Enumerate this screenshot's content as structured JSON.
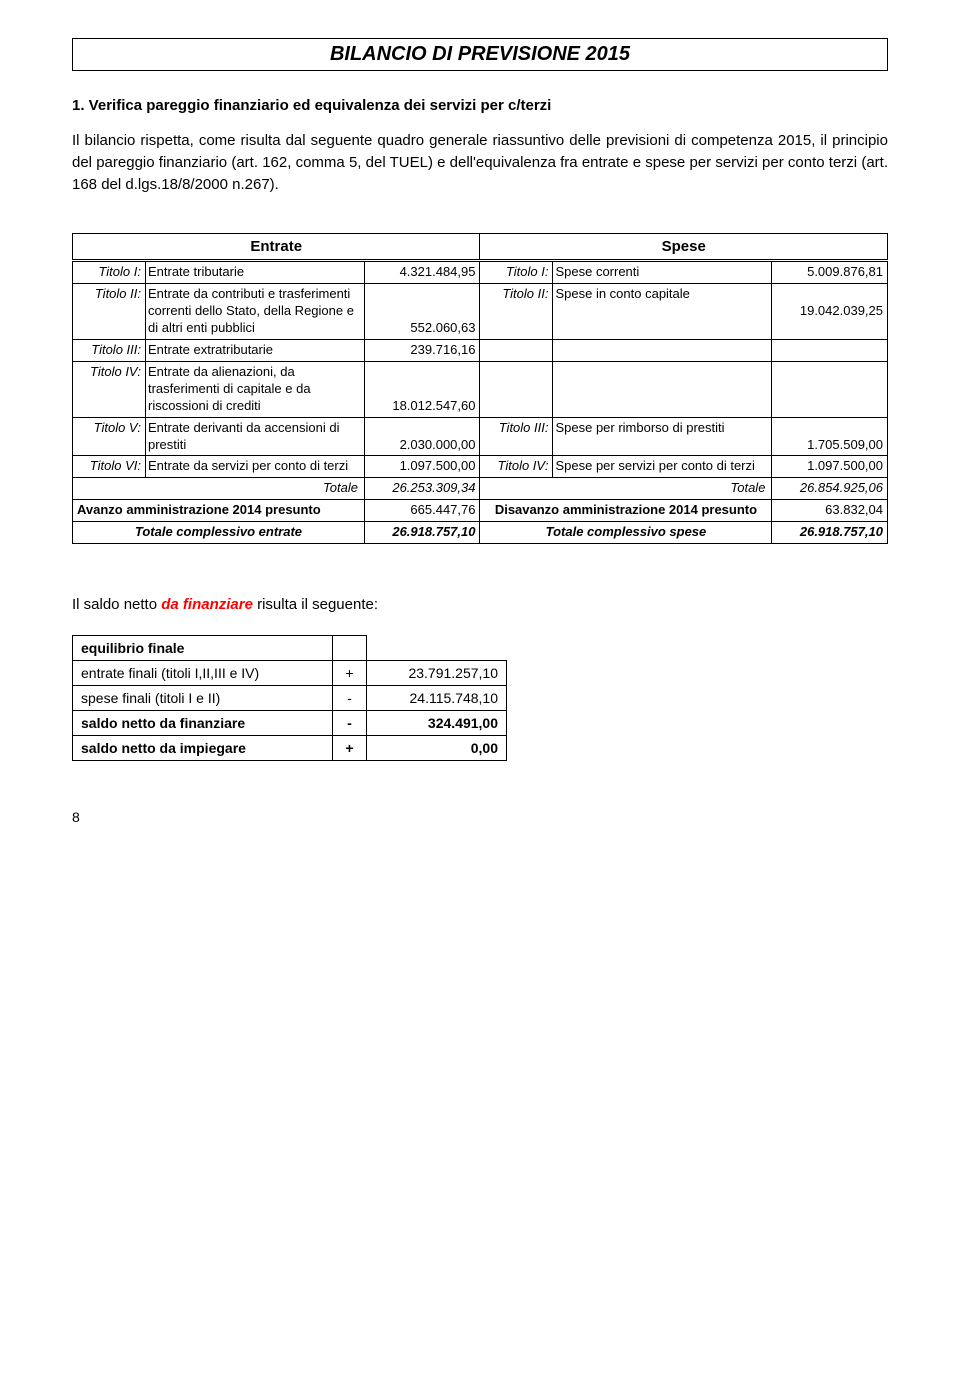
{
  "doc_title": "BILANCIO DI PREVISIONE 2015",
  "section_heading": "1. Verifica pareggio finanziario ed equivalenza dei servizi per c/terzi",
  "body_text": "Il bilancio rispetta, come risulta dal seguente quadro generale riassuntivo delle previsioni di competenza 2015, il principio del pareggio finanziario (art. 162, comma 5, del TUEL) e dell'equivalenza fra entrate e spese per servizi per conto terzi (art. 168 del d.lgs.18/8/2000 n.267).",
  "budget": {
    "entrate_head": "Entrate",
    "spese_head": "Spese",
    "rows": {
      "e1": {
        "titolo": "Titolo I:",
        "desc": "Entrate tributarie",
        "val": "4.321.484,95"
      },
      "s1": {
        "titolo": "Titolo I:",
        "desc": "Spese correnti",
        "val": "5.009.876,81"
      },
      "e2": {
        "titolo": "Titolo II:",
        "desc": "Entrate da contributi e trasferimenti correnti dello Stato, della Regione e di altri enti pubblici",
        "val": "552.060,63"
      },
      "s2": {
        "titolo": "Titolo II:",
        "desc": "Spese in conto capitale",
        "val": "19.042.039,25"
      },
      "e3": {
        "titolo": "Titolo III:",
        "desc": "Entrate extratributarie",
        "val": "239.716,16"
      },
      "e4": {
        "titolo": "Titolo IV:",
        "desc": "Entrate da alienazioni, da trasferimenti di capitale e da riscossioni di crediti",
        "val": "18.012.547,60"
      },
      "e5": {
        "titolo": "Titolo V:",
        "desc": "Entrate derivanti da accensioni di prestiti",
        "val": "2.030.000,00"
      },
      "s3": {
        "titolo": "Titolo III:",
        "desc": "Spese per rimborso di prestiti",
        "val": "1.705.509,00"
      },
      "e6": {
        "titolo": "Titolo VI:",
        "desc": "Entrate da servizi per conto di terzi",
        "val": "1.097.500,00"
      },
      "s4": {
        "titolo": "Titolo IV:",
        "desc": "Spese per servizi per conto di terzi",
        "val": "1.097.500,00"
      },
      "tot_e": {
        "label": "Totale",
        "val": "26.253.309,34"
      },
      "tot_s": {
        "label": "Totale",
        "val": "26.854.925,06"
      },
      "avanzo": {
        "label": "Avanzo amministrazione 2014 presunto",
        "val": "665.447,76"
      },
      "disavanzo": {
        "label": "Disavanzo  amministrazione 2014 presunto",
        "val": "63.832,04"
      },
      "comp_e": {
        "label": "Totale complessivo entrate",
        "val": "26.918.757,10"
      },
      "comp_s": {
        "label": "Totale complessivo spese",
        "val": "26.918.757,10"
      }
    }
  },
  "saldo_line_pre": "Il saldo netto ",
  "saldo_line_em": "da finanziare",
  "saldo_line_post": "  risulta il seguente:",
  "equilibrio": {
    "head": "equilibrio finale",
    "rows": [
      {
        "label": "entrate finali (titoli I,II,III e IV)",
        "sign": "+",
        "val": "23.791.257,10",
        "bold": false
      },
      {
        "label": "spese finali (titoli I e II)",
        "sign": "-",
        "val": "24.115.748,10",
        "bold": false
      },
      {
        "label": "saldo netto da finanziare",
        "sign": "-",
        "val": "324.491,00",
        "bold": true
      },
      {
        "label": "saldo netto da impiegare",
        "sign": "+",
        "val": "0,00",
        "bold": true
      }
    ]
  },
  "page_num": "8"
}
